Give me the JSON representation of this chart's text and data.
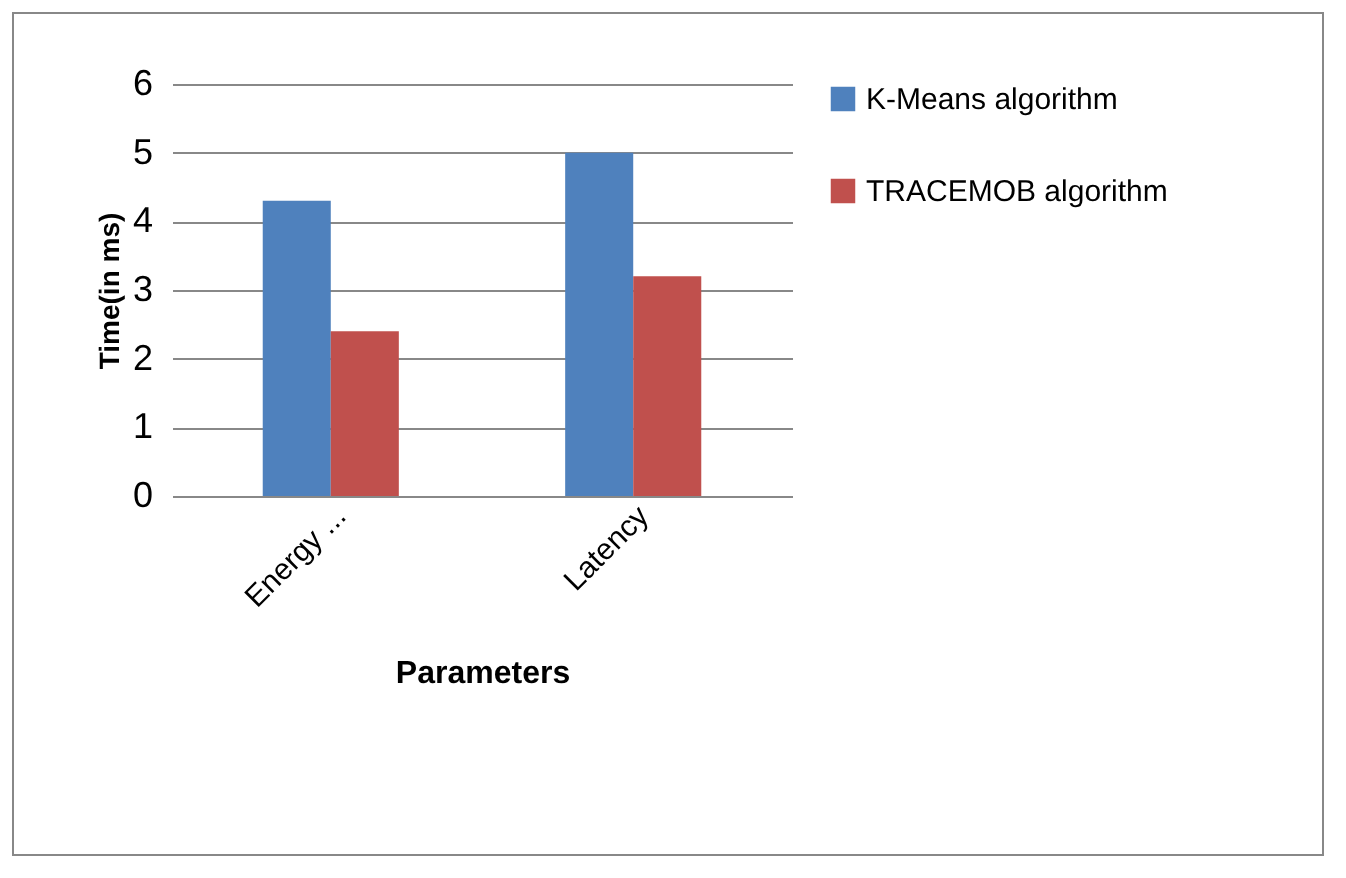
{
  "chart_data": {
    "type": "bar",
    "xlabel": "Parameters",
    "ylabel": "Time(in ms)",
    "categories": [
      "Energy ...",
      "Latency"
    ],
    "series": [
      {
        "name": "K-Means algorithm",
        "color": "#4f81bd",
        "values": [
          4.3,
          5.0
        ]
      },
      {
        "name": "TRACEMOB algorithm",
        "color": "#c0504d",
        "values": [
          2.4,
          3.2
        ]
      }
    ],
    "ylim": [
      0,
      6
    ],
    "yticks": [
      0,
      1,
      2,
      3,
      4,
      5,
      6
    ],
    "grid": "y",
    "legend": "right"
  }
}
